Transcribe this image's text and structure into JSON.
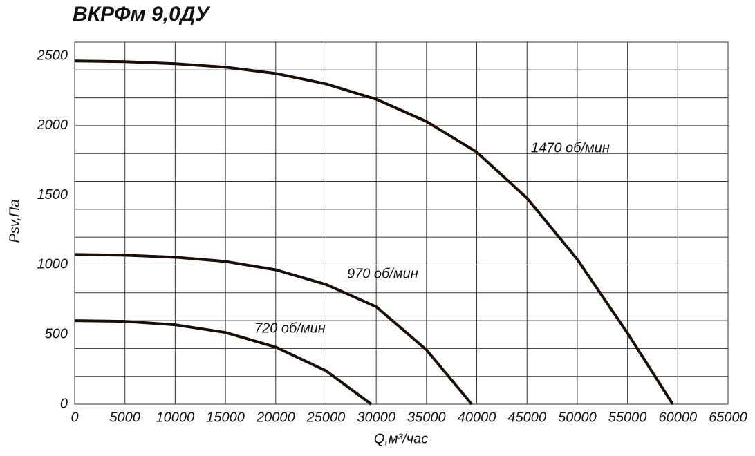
{
  "chart_data": {
    "type": "line",
    "title": "ВКРФм 9,0ДУ",
    "x_label": "Q,м³/час",
    "y_label": "Psv,Па",
    "xlim": [
      0,
      65000
    ],
    "ylim": [
      0,
      2600
    ],
    "xticks": [
      0,
      5000,
      10000,
      15000,
      20000,
      25000,
      30000,
      35000,
      40000,
      45000,
      50000,
      55000,
      60000,
      65000
    ],
    "yticks": [
      0,
      500,
      1000,
      1500,
      2000,
      2500
    ],
    "ygrid": [
      0,
      200,
      400,
      600,
      800,
      1000,
      1200,
      1400,
      1600,
      1800,
      2000,
      2200,
      2400,
      2600
    ],
    "grid": true,
    "series": [
      {
        "name": "1470 об/мин",
        "color": "#1a0f08",
        "x": [
          0,
          5000,
          10000,
          15000,
          20000,
          25000,
          30000,
          35000,
          40000,
          45000,
          50000,
          55000,
          59500
        ],
        "values": [
          2465,
          2460,
          2445,
          2420,
          2375,
          2300,
          2190,
          2030,
          1810,
          1480,
          1040,
          510,
          0
        ]
      },
      {
        "name": "970 об/мин",
        "color": "#1a0f08",
        "x": [
          0,
          5000,
          10000,
          15000,
          20000,
          25000,
          30000,
          35000,
          39500
        ],
        "values": [
          1075,
          1070,
          1055,
          1025,
          965,
          860,
          700,
          390,
          0
        ]
      },
      {
        "name": "720 об/мин",
        "color": "#1a0f08",
        "x": [
          0,
          5000,
          10000,
          15000,
          20000,
          25000,
          29500
        ],
        "values": [
          600,
          595,
          570,
          515,
          410,
          240,
          0
        ]
      }
    ]
  }
}
